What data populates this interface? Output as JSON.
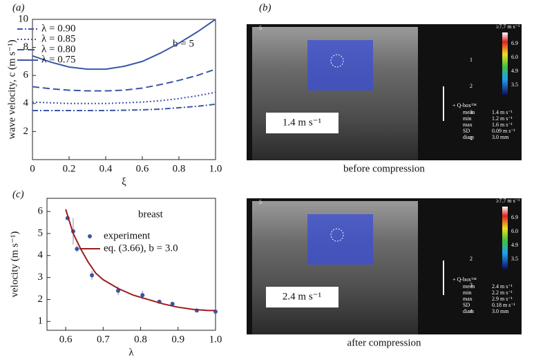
{
  "chart_data": [
    {
      "type": "line",
      "panel": "(a)",
      "xlabel": "ξ",
      "ylabel": "wave velocity, c (m s⁻¹)",
      "annotation": "b = 5",
      "xlim": [
        0,
        1
      ],
      "ylim": [
        0,
        10
      ],
      "xticks": [
        0,
        0.2,
        0.4,
        0.6,
        0.8,
        {
          "value": 1,
          "label": "1.0"
        }
      ],
      "yticks": [
        2,
        4,
        6,
        8,
        10
      ],
      "legend": "upper left",
      "series": [
        {
          "name": "λ = 0.90",
          "type": "line",
          "dash": "dashdot",
          "color": "#3a56a5",
          "x": [
            0,
            0.1,
            0.2,
            0.3,
            0.4,
            0.5,
            0.6,
            0.7,
            0.8,
            0.9,
            1.0
          ],
          "values": [
            3.5,
            3.5,
            3.5,
            3.5,
            3.5,
            3.52,
            3.55,
            3.6,
            3.7,
            3.8,
            3.95
          ]
        },
        {
          "name": "λ = 0.85",
          "type": "line",
          "dash": "dot",
          "color": "#3a56a5",
          "x": [
            0,
            0.1,
            0.2,
            0.3,
            0.4,
            0.5,
            0.6,
            0.7,
            0.8,
            0.9,
            1.0
          ],
          "values": [
            4.1,
            4.05,
            4.0,
            4.0,
            4.0,
            4.05,
            4.1,
            4.2,
            4.35,
            4.55,
            4.8
          ]
        },
        {
          "name": "λ = 0.80",
          "type": "line",
          "dash": "dash",
          "color": "#3a56a5",
          "x": [
            0,
            0.1,
            0.2,
            0.3,
            0.4,
            0.5,
            0.6,
            0.7,
            0.8,
            0.9,
            1.0
          ],
          "values": [
            5.2,
            5.05,
            4.95,
            4.9,
            4.9,
            4.95,
            5.1,
            5.35,
            5.65,
            6.0,
            6.45
          ]
        },
        {
          "name": "λ = 0.75",
          "type": "line",
          "dash": "solid",
          "color": "#3a56a5",
          "x": [
            0,
            0.1,
            0.2,
            0.3,
            0.4,
            0.5,
            0.6,
            0.7,
            0.8,
            0.9,
            1.0
          ],
          "values": [
            7.4,
            6.95,
            6.6,
            6.45,
            6.45,
            6.65,
            7.0,
            7.6,
            8.3,
            9.1,
            10.0
          ]
        }
      ]
    },
    {
      "type": "line",
      "panel": "(c)",
      "title": "breast",
      "xlabel": "λ",
      "ylabel": "velocity (m s⁻¹)",
      "xlim": [
        0.55,
        1.0
      ],
      "ylim": [
        0.6,
        6.6
      ],
      "xticks": [
        0.6,
        0.7,
        0.8,
        0.9,
        {
          "value": 1,
          "label": "1.0"
        }
      ],
      "yticks": [
        1,
        2,
        3,
        4,
        5,
        6
      ],
      "legend": "upper right",
      "series": [
        {
          "name": "experiment",
          "type": "scatter",
          "color": "#3a56a5",
          "x": [
            0.605,
            0.62,
            0.63,
            0.67,
            0.74,
            0.805,
            0.85,
            0.885,
            0.95,
            1.0
          ],
          "values": [
            5.7,
            5.1,
            4.3,
            3.1,
            2.4,
            2.2,
            1.9,
            1.8,
            1.5,
            1.45
          ],
          "errors": [
            0.1,
            0.6,
            0.15,
            0.2,
            0.2,
            0.2,
            0.05,
            0.1,
            0.05,
            0.05
          ]
        },
        {
          "name": "eq. (3.66), b = 3.0",
          "type": "line",
          "dash": "solid",
          "color": "#9b1c1c",
          "x": [
            0.6,
            0.62,
            0.64,
            0.66,
            0.68,
            0.7,
            0.74,
            0.78,
            0.82,
            0.86,
            0.9,
            0.94,
            0.98,
            1.0
          ],
          "values": [
            6.1,
            5.0,
            4.3,
            3.7,
            3.2,
            2.9,
            2.5,
            2.2,
            2.0,
            1.8,
            1.65,
            1.55,
            1.5,
            1.5
          ]
        }
      ]
    }
  ],
  "panel_b": "(b)",
  "images": [
    {
      "corner": "5",
      "scale_max": "≥7.7 m s⁻¹",
      "scale_ticks": [
        "6.9",
        "6.0",
        "4.9",
        "3.5"
      ],
      "depth_ticks": [
        "1",
        "2",
        "3",
        "4"
      ],
      "qbox": "+ Q-box™",
      "stats": [
        [
          "mean",
          "1.4 m s⁻¹"
        ],
        [
          "min",
          "1.2 m s⁻¹"
        ],
        [
          "max",
          "1.6 m s⁻¹"
        ],
        [
          "SD",
          "0.09 m s⁻¹"
        ],
        [
          "diam",
          "3.0 mm"
        ]
      ],
      "velocity": "1.4 m s⁻¹",
      "caption": "before compression"
    },
    {
      "corner": "5",
      "scale_max": "≥7.7 m s⁻¹",
      "scale_ticks": [
        "6.9",
        "6.0",
        "4.9",
        "3.5"
      ],
      "depth_ticks": [
        "2",
        "3",
        "4"
      ],
      "qbox": "+ Q-box™",
      "stats": [
        [
          "mean",
          "2.4 m s⁻¹"
        ],
        [
          "min",
          "2.2 m s⁻¹"
        ],
        [
          "max",
          "2.9 m s⁻¹"
        ],
        [
          "SD",
          "0.18 m s⁻¹"
        ],
        [
          "diam",
          "3.0 mm"
        ]
      ],
      "velocity": "2.4 m s⁻¹",
      "caption": "after compression"
    }
  ]
}
